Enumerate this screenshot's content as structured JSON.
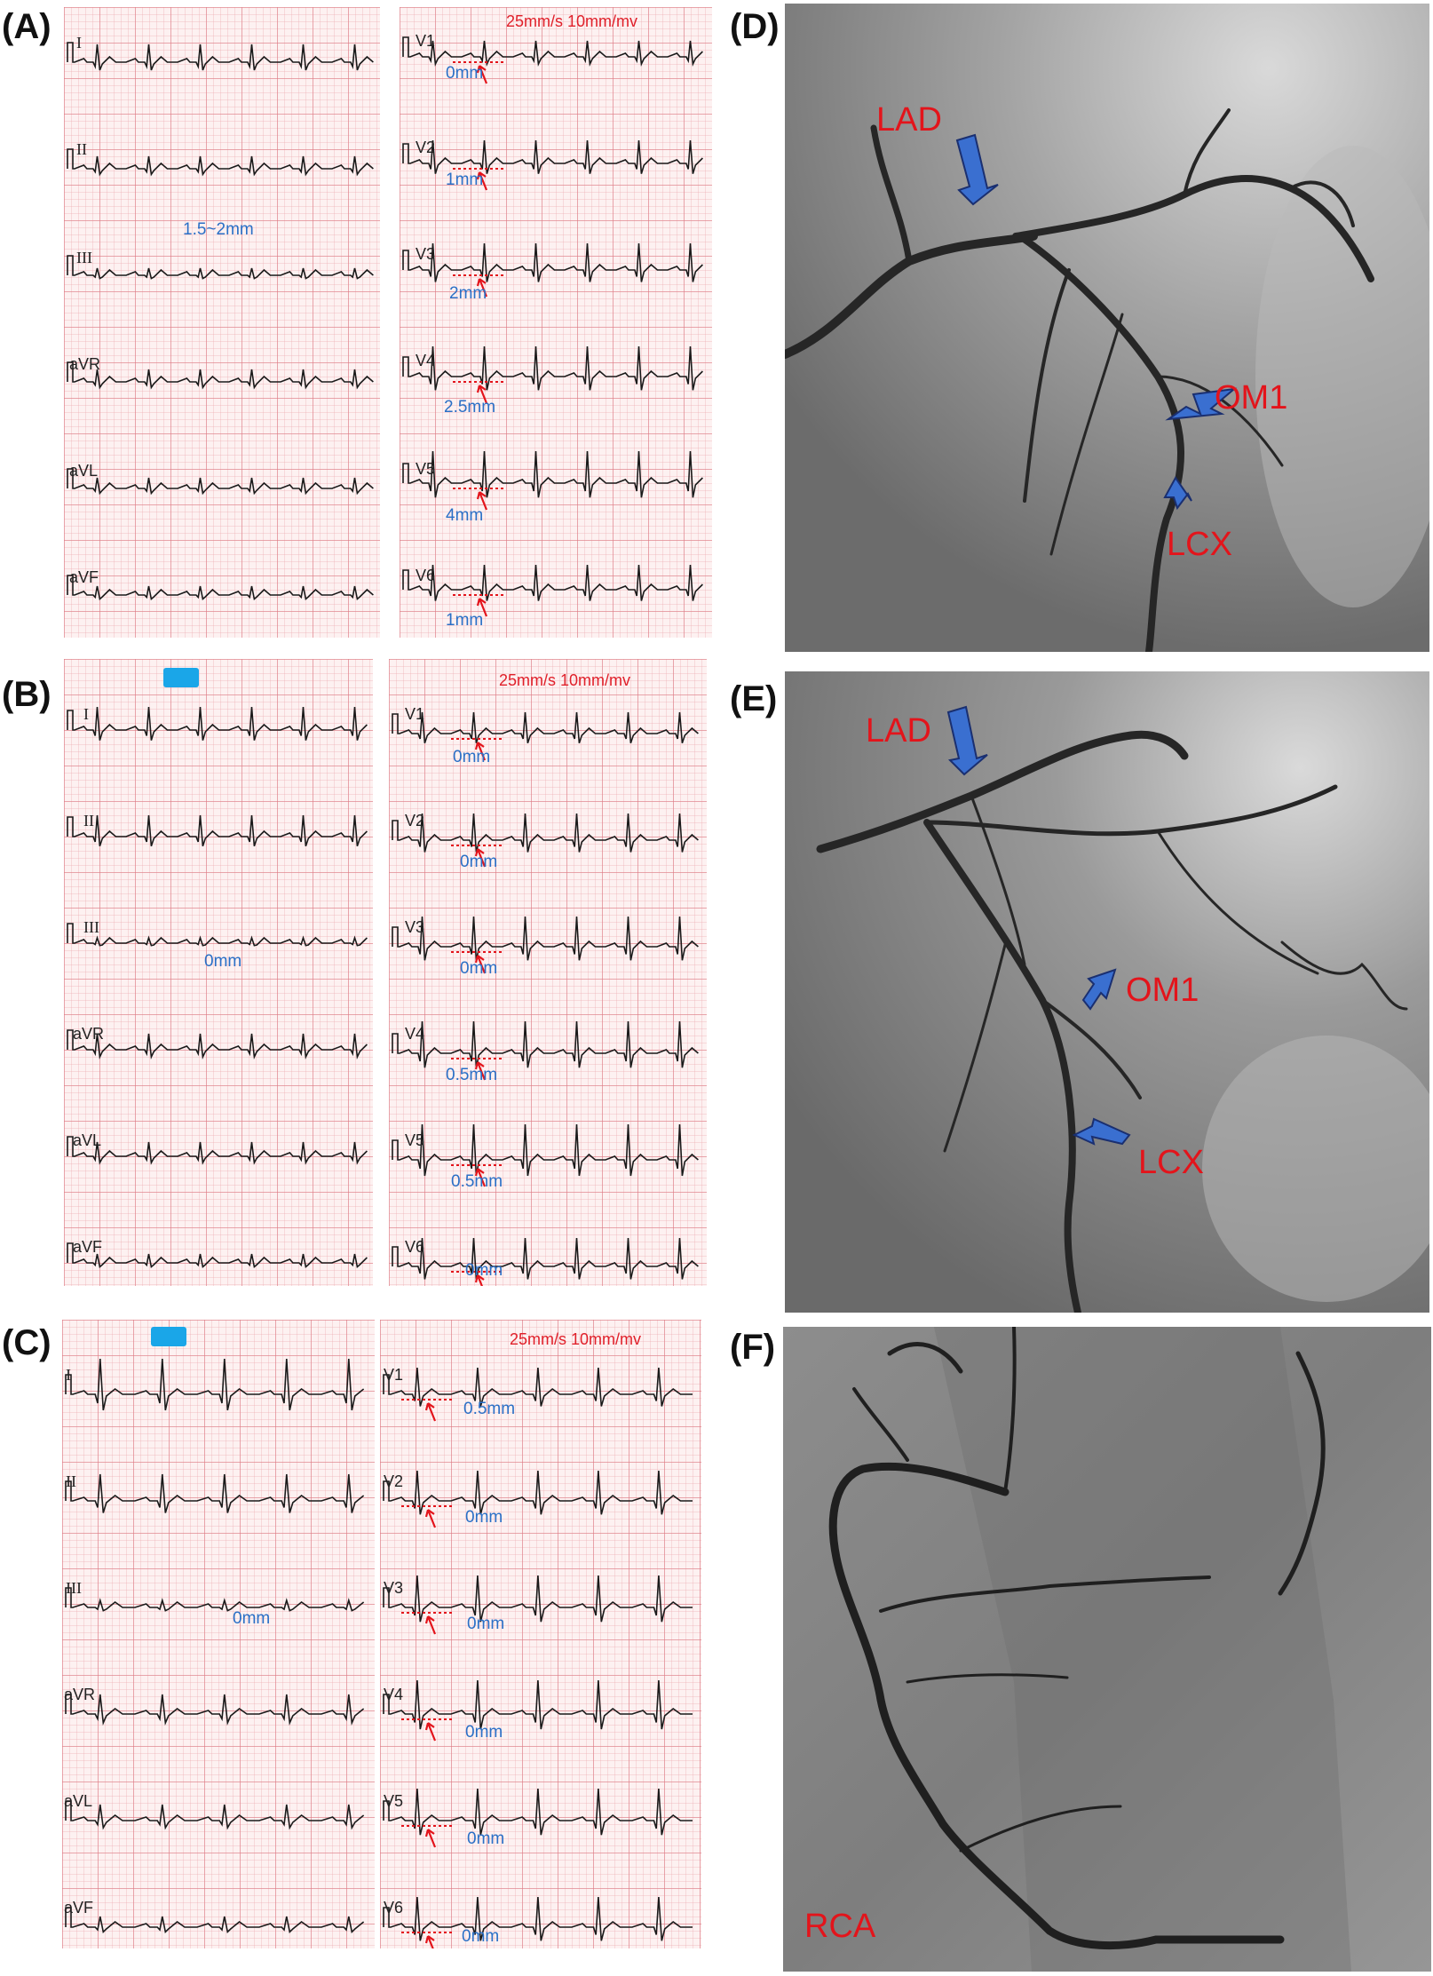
{
  "panels": {
    "A": {
      "letter": "(A)",
      "speed": "25mm/s 10mm/mv",
      "limb_leads": [
        "I",
        "II",
        "III",
        "aVR",
        "aVL",
        "aVF"
      ],
      "chest_leads": [
        "V1",
        "V2",
        "V3",
        "V4",
        "V5",
        "V6"
      ],
      "limb_measurements": {
        "III": "1.5~2mm"
      },
      "chest_measurements": [
        "0mm",
        "1mm",
        "2mm",
        "2.5mm",
        "4mm",
        "1mm"
      ]
    },
    "B": {
      "letter": "(B)",
      "speed": "25mm/s 10mm/mv",
      "limb_leads": [
        "I",
        "II",
        "III",
        "aVR",
        "aVL",
        "aVF"
      ],
      "chest_leads": [
        "V1",
        "V2",
        "V3",
        "V4",
        "V5",
        "V6"
      ],
      "limb_measurements": {
        "III": "0mm"
      },
      "chest_measurements": [
        "0mm",
        "0mm",
        "0mm",
        "0.5mm",
        "0.5mm",
        "0mm"
      ]
    },
    "C": {
      "letter": "(C)",
      "speed": "25mm/s 10mm/mv",
      "limb_leads": [
        "I",
        "II",
        "III",
        "aVR",
        "aVL",
        "aVF"
      ],
      "chest_leads": [
        "V1",
        "V2",
        "V3",
        "V4",
        "V5",
        "V6"
      ],
      "limb_measurements": {
        "III": "0mm"
      },
      "chest_measurements": [
        "0.5mm",
        "0mm",
        "0mm",
        "0mm",
        "0mm",
        "0mm"
      ]
    },
    "D": {
      "letter": "(D)",
      "labels": [
        "LAD",
        "OM1",
        "LCX"
      ]
    },
    "E": {
      "letter": "(E)",
      "labels": [
        "LAD",
        "OM1",
        "LCX"
      ]
    },
    "F": {
      "letter": "(F)",
      "labels": [
        "RCA"
      ]
    }
  },
  "colors": {
    "annotation_red": "#e3141b",
    "measure_blue": "#2a6fc6",
    "arrow_blue": "#3a6fd0",
    "trace": "#1a1a1a"
  }
}
